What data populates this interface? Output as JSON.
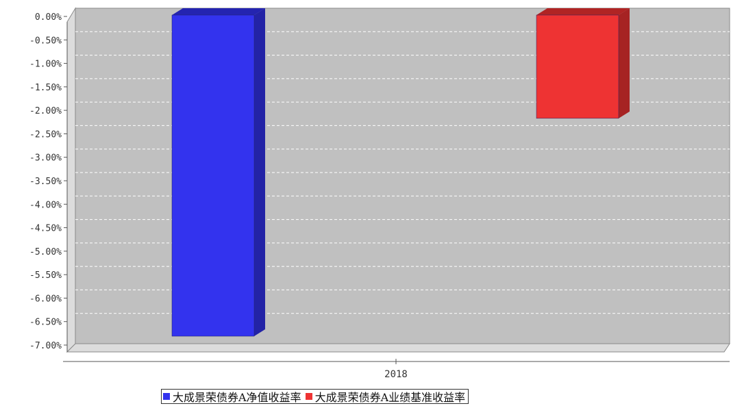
{
  "chart_data": {
    "type": "bar",
    "categories": [
      "2018"
    ],
    "series": [
      {
        "name": "大成景荣债券A净值收益率",
        "values": [
          -6.84
        ],
        "color": "#3333ee",
        "side_color": "#2323a6",
        "top_color": "#2424b0"
      },
      {
        "name": "大成景荣债券A业绩基准收益率",
        "values": [
          -2.2
        ],
        "color": "#ee3333",
        "side_color": "#a62323",
        "top_color": "#b02424"
      }
    ],
    "ylim": [
      -7.0,
      0.0
    ],
    "yticks": [
      0.0,
      -0.5,
      -1.0,
      -1.5,
      -2.0,
      -2.5,
      -3.0,
      -3.5,
      -4.0,
      -4.5,
      -5.0,
      -5.5,
      -6.0,
      -6.5,
      -7.0
    ],
    "ytick_labels": [
      "0.00%",
      "-0.50%",
      "-1.00%",
      "-1.50%",
      "-2.00%",
      "-2.50%",
      "-3.00%",
      "-3.50%",
      "-4.00%",
      "-4.50%",
      "-5.00%",
      "-5.50%",
      "-6.00%",
      "-6.50%",
      "-7.00%"
    ],
    "grid": true,
    "legend_position": "bottom-center",
    "plot_background": "#c0c0c0",
    "title": "",
    "xlabel": "",
    "ylabel": ""
  }
}
